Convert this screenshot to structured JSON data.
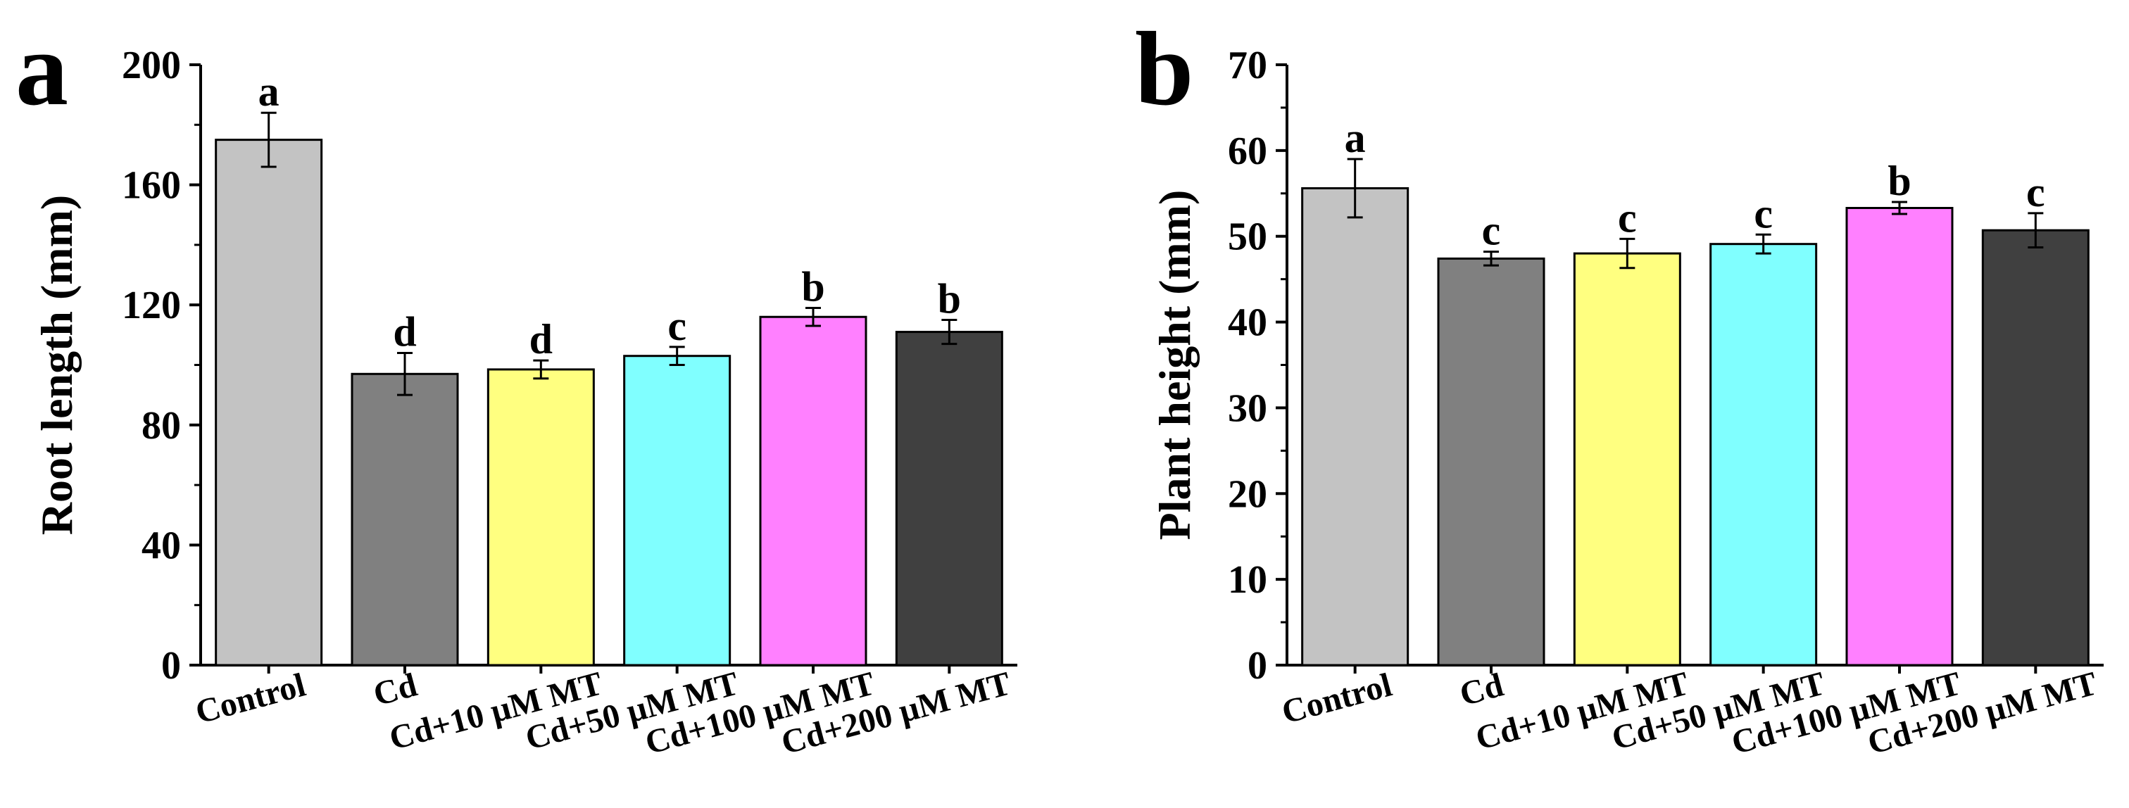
{
  "chart_data": [
    {
      "type": "bar",
      "panel_label": "a",
      "categories": [
        "Control",
        "Cd",
        "Cd+10 μM MT",
        "Cd+50 μM MT",
        "Cd+100 μM MT",
        "Cd+200 μM MT"
      ],
      "values": [
        175,
        97,
        98.5,
        103,
        116,
        111
      ],
      "errors": [
        9,
        7,
        3,
        3,
        3,
        4
      ],
      "significance": [
        "a",
        "d",
        "d",
        "c",
        "b",
        "b"
      ],
      "colors": [
        "#c3c3c3",
        "#808080",
        "#ffff80",
        "#80ffff",
        "#ff80ff",
        "#404040"
      ],
      "ylabel": "Root length (mm)",
      "xlabel": "",
      "ylim": [
        0,
        200
      ],
      "yticks": [
        0,
        40,
        80,
        120,
        160,
        200
      ],
      "grid": false
    },
    {
      "type": "bar",
      "panel_label": "b",
      "categories": [
        "Control",
        "Cd",
        "Cd+10 μM MT",
        "Cd+50 μM MT",
        "Cd+100 μM MT",
        "Cd+200 μM MT"
      ],
      "values": [
        55.6,
        47.4,
        48,
        49.1,
        53.3,
        50.7
      ],
      "errors": [
        3.4,
        0.8,
        1.7,
        1.1,
        0.7,
        2
      ],
      "significance": [
        "a",
        "c",
        "c",
        "c",
        "b",
        "c"
      ],
      "colors": [
        "#c3c3c3",
        "#808080",
        "#ffff80",
        "#80ffff",
        "#ff80ff",
        "#404040"
      ],
      "ylabel": "Plant height (mm)",
      "xlabel": "",
      "ylim": [
        0,
        70
      ],
      "yticks": [
        0,
        10,
        20,
        30,
        40,
        50,
        60,
        70
      ],
      "grid": false
    }
  ]
}
